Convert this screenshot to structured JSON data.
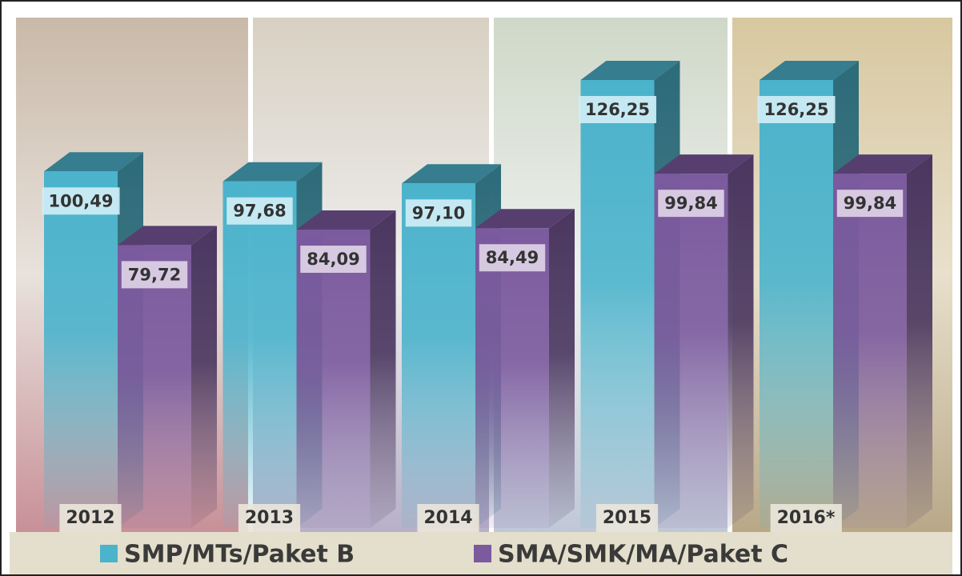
{
  "chart_data": {
    "type": "bar3d",
    "categories": [
      "2012",
      "2013",
      "2014",
      "2015",
      "2016*"
    ],
    "series": [
      {
        "name": "SMP/MTs/Paket B",
        "color": "#4bb3cc",
        "values": [
          100.49,
          97.68,
          97.1,
          126.25,
          126.25
        ],
        "value_labels": [
          "100,49",
          "97,68",
          "97,10",
          "126,25",
          "126,25"
        ]
      },
      {
        "name": "SMA/SMK/MA/Paket C",
        "color": "#7b5a9e",
        "values": [
          79.72,
          84.09,
          84.49,
          99.84,
          99.84
        ],
        "value_labels": [
          "79,72",
          "84,09",
          "84,49",
          "99,84",
          "99,84"
        ]
      }
    ]
  }
}
